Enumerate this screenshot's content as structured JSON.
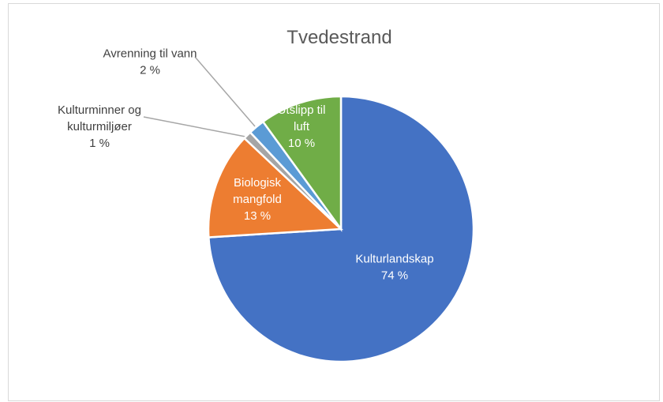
{
  "chart_data": {
    "type": "pie",
    "title": "Tvedestrand",
    "legend": "none",
    "slices": [
      {
        "name": "Kulturlandskap",
        "label": [
          "Kulturlandskap"
        ],
        "value": 74,
        "value_label": "74 %",
        "color": "#4472C4",
        "text_color": "#ffffff"
      },
      {
        "name": "Biologisk mangfold",
        "label": [
          "Biologisk",
          "mangfold"
        ],
        "value": 13,
        "value_label": "13 %",
        "color": "#ED7D31",
        "text_color": "#ffffff"
      },
      {
        "name": "Kulturminner og kulturmiljøer",
        "label": [
          "Kulturminner og",
          "kulturmiljøer"
        ],
        "value": 1,
        "value_label": "1 %",
        "color": "#A5A5A5",
        "text_color": "#404040"
      },
      {
        "name": "Avrenning til vann",
        "label": [
          "Avrenning til vann"
        ],
        "value": 2,
        "value_label": "2 %",
        "color": "#5B9BD5",
        "text_color": "#404040"
      },
      {
        "name": "Utslipp til luft",
        "label": [
          "Utslipp til",
          "luft"
        ],
        "value": 10,
        "value_label": "10 %",
        "color": "#70AD47",
        "text_color": "#ffffff"
      }
    ]
  }
}
